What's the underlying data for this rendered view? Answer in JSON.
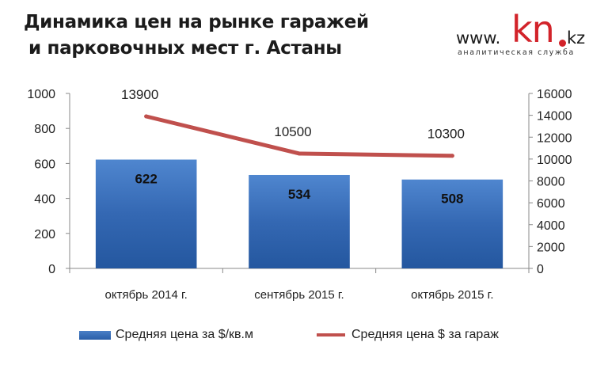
{
  "header": {
    "title_line1": "Динамика цен на рынке гаражей",
    "title_line2": "и парковочных мест г. Астаны"
  },
  "logo": {
    "www": "www.",
    "kn": "kn",
    "kz": "kz",
    "subtitle": "аналитическая служба",
    "accent_color": "#d2232a"
  },
  "chart_data": {
    "type": "bar",
    "categories": [
      "октябрь 2014 г.",
      "сентябрь 2015 г.",
      "октябрь 2015 г."
    ],
    "series": [
      {
        "name": "Средняя цена за $/кв.м",
        "kind": "bar",
        "axis": "left",
        "values": [
          622,
          534,
          508
        ],
        "color": "#2f63ae"
      },
      {
        "name": "Средняя цена $ за гараж",
        "kind": "line",
        "axis": "right",
        "values": [
          13900,
          10500,
          10300
        ],
        "color": "#c0504d"
      }
    ],
    "y_left": {
      "min": 0,
      "max": 1000,
      "step": 200
    },
    "y_right": {
      "min": 0,
      "max": 16000,
      "step": 2000
    },
    "grid": false,
    "legend_position": "bottom"
  }
}
